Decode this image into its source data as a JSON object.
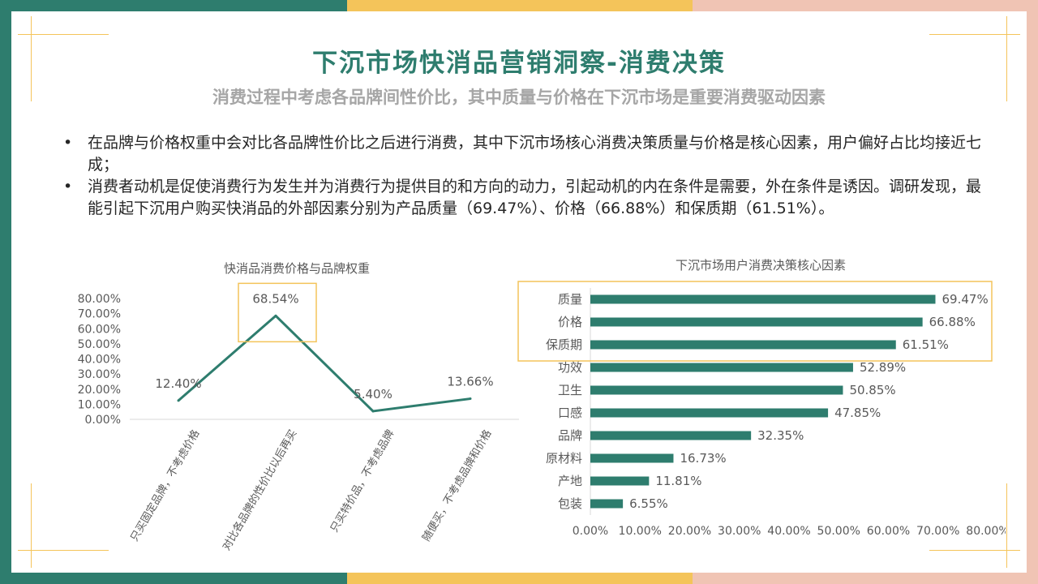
{
  "header": {
    "title": "下沉市场快消品营销洞察-消费决策",
    "subtitle": "消费过程中考虑各品牌间性价比，其中质量与价格在下沉市场是重要消费驱动因素"
  },
  "bullets": [
    {
      "mark": "•",
      "text": "在品牌与价格权重中会对比各品牌性价比之后进行消费，其中下沉市场核心消费决策质量与价格是核心因素，用户偏好占比均接近七成；"
    },
    {
      "mark": "•",
      "text": "消费者动机是促使消费行为发生并为消费行为提供目的和方向的动力，引起动机的内在条件是需要，外在条件是诱因。调研发现，最能引起下沉用户购买快消品的外部因素分别为产品质量（69.47%）、价格（66.88%）和保质期（61.51%）。"
    }
  ],
  "colors": {
    "primary": "#2e7d6e",
    "accent": "#f4c45a",
    "pink": "#f0c4b4",
    "grey_text": "#a6a6a6"
  },
  "chart_data": [
    {
      "type": "line",
      "title": "快消品消费价格与品牌权重",
      "categories": [
        "只买固定品牌，不考虑价格",
        "对比各品牌的性价比以后再买",
        "只买特价品，不考虑品牌",
        "随便买，不考虑品牌和价格"
      ],
      "values": [
        12.4,
        68.54,
        5.4,
        13.66
      ],
      "data_labels": [
        "12.40%",
        "68.54%",
        "5.40%",
        "13.66%"
      ],
      "y_ticks": [
        "0.00%",
        "10.00%",
        "20.00%",
        "30.00%",
        "40.00%",
        "50.00%",
        "60.00%",
        "70.00%",
        "80.00%"
      ],
      "ylim": [
        0,
        80
      ],
      "highlight_index": 1,
      "color": "#2e7d6e"
    },
    {
      "type": "bar",
      "orientation": "horizontal",
      "title": "下沉市场用户消费决策核心因素",
      "categories": [
        "质量",
        "价格",
        "保质期",
        "功效",
        "卫生",
        "口感",
        "品牌",
        "原材料",
        "产地",
        "包装"
      ],
      "values": [
        69.47,
        66.88,
        61.51,
        52.89,
        50.85,
        47.85,
        32.35,
        16.73,
        11.81,
        6.55
      ],
      "data_labels": [
        "69.47%",
        "66.88%",
        "61.51%",
        "52.89%",
        "50.85%",
        "47.85%",
        "32.35%",
        "16.73%",
        "11.81%",
        "6.55%"
      ],
      "x_ticks": [
        "0.00%",
        "10.00%",
        "20.00%",
        "30.00%",
        "40.00%",
        "50.00%",
        "60.00%",
        "70.00%",
        "80.00%"
      ],
      "xlim": [
        0,
        80
      ],
      "highlight_count": 3,
      "color": "#2e7d6e"
    }
  ]
}
